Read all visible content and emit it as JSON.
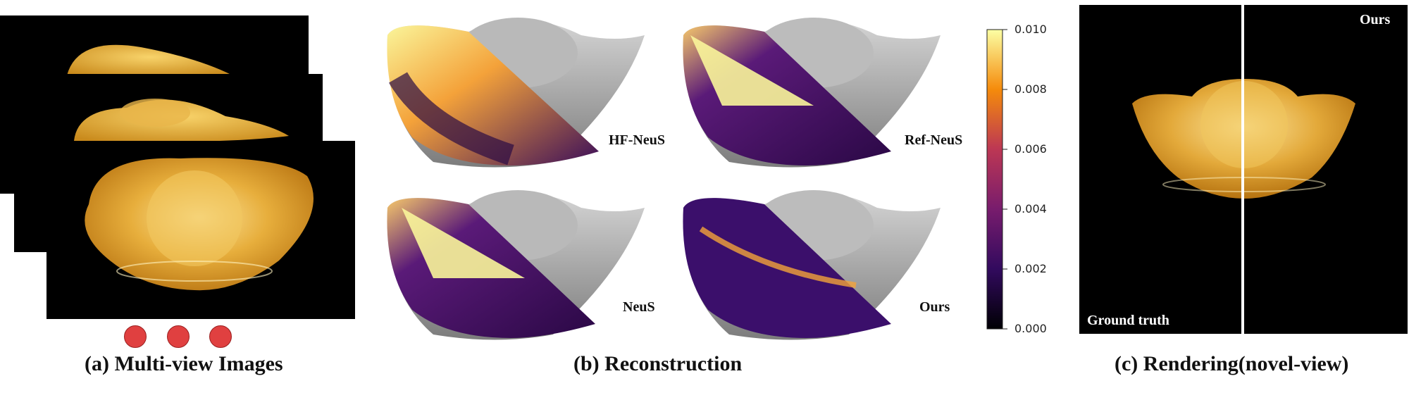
{
  "panel_a": {
    "caption": "(a) Multi-view Images"
  },
  "panel_b": {
    "caption": "(b) Reconstruction",
    "methods": [
      "HF-NeuS",
      "Ref-NeuS",
      "NeuS",
      "Ours"
    ],
    "colorbar_ticks": [
      "0.010",
      "0.008",
      "0.006",
      "0.004",
      "0.002",
      "0.000"
    ]
  },
  "panel_c": {
    "caption": "(c) Rendering(novel-view)",
    "left_label": "Ground truth",
    "right_label": "Ours"
  },
  "colors": {
    "gold": "#e2a83a",
    "gray_mesh": "#a8a8a8",
    "dot_red": "#e04040"
  }
}
